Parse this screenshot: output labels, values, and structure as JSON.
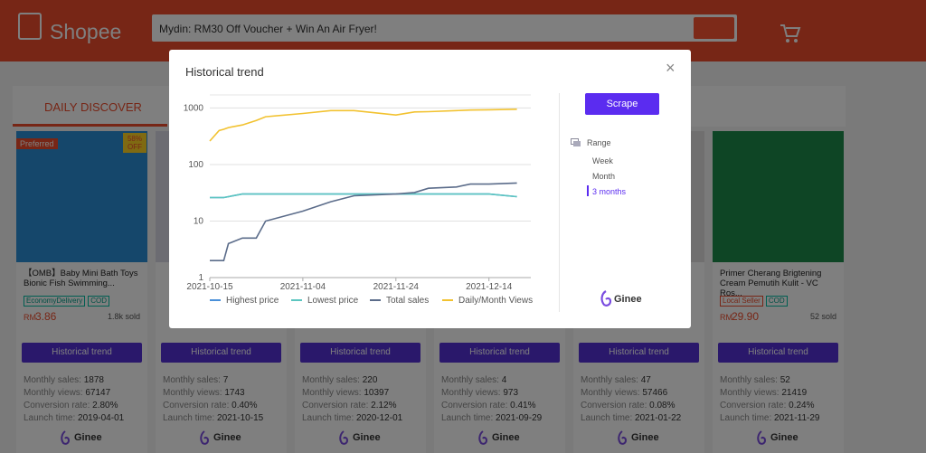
{
  "header": {
    "logo": "Shopee",
    "search": "Mydin: RM30 Off Voucher + Win An Air Fryer!"
  },
  "tab": "DAILY DISCOVER",
  "button": "Historical trend",
  "brand": "Ginee",
  "stat_labels": [
    "Monthly sales:",
    "Monthly views:",
    "Conversion rate:",
    "Launch time:"
  ],
  "products": [
    {
      "badge": "Preferred",
      "discount": "58% OFF",
      "title": "【OMB】Baby Mini Bath Toys Bionic Fish Swimming...",
      "tags": [
        "EconomyDelivery",
        "COD"
      ],
      "currency": "RM",
      "price": "3.86",
      "sold": "1.8k sold",
      "stats": [
        "1878",
        "67147",
        "2.80%",
        "2019-04-01"
      ]
    },
    {
      "stats": [
        "7",
        "1743",
        "0.40%",
        "2021-10-15"
      ]
    },
    {
      "stats": [
        "220",
        "10397",
        "2.12%",
        "2020-12-01"
      ]
    },
    {
      "stats": [
        "4",
        "973",
        "0.41%",
        "2021-09-29"
      ]
    },
    {
      "stats": [
        "47",
        "57466",
        "0.08%",
        "2021-01-22"
      ]
    },
    {
      "title": "Primer Cherang Brigtening Cream Pemutih Kulit - VC Ros...",
      "tags": [
        "Local Seller",
        "COD"
      ],
      "currency": "RM",
      "price": "29.90",
      "sold": "52 sold",
      "stats": [
        "52",
        "21419",
        "0.24%",
        "2021-11-29"
      ]
    }
  ],
  "modal": {
    "title": "Historical trend",
    "close": "×",
    "scrape": "Scrape",
    "range_label": "Range",
    "range_options": [
      "Week",
      "Month",
      "3 months"
    ],
    "selected_range": "3 months",
    "brand": "Ginee"
  },
  "chart_data": {
    "type": "line",
    "x": [
      "2021-10-15",
      "2021-10-17",
      "2021-10-18",
      "2021-10-19",
      "2021-10-22",
      "2021-10-25",
      "2021-10-27",
      "2021-11-04",
      "2021-11-10",
      "2021-11-15",
      "2021-11-24",
      "2021-11-28",
      "2021-12-01",
      "2021-12-07",
      "2021-12-10",
      "2021-12-14",
      "2021-12-20"
    ],
    "xlim": [
      "2021-10-15",
      "2021-12-23"
    ],
    "xticks": [
      "2021-10-15",
      "2021-11-04",
      "2021-11-24",
      "2021-12-14"
    ],
    "ylim": [
      1,
      1700
    ],
    "yticks": [
      1,
      10,
      100,
      1000
    ],
    "log_y": true,
    "grid": true,
    "legend": "bottom",
    "series": [
      {
        "name": "Highest price",
        "color": "#4a90d9",
        "values": [
          26,
          26,
          26,
          27,
          30,
          30,
          30,
          30,
          30,
          30,
          30,
          30,
          30,
          30,
          30,
          30,
          27
        ]
      },
      {
        "name": "Lowest price",
        "color": "#5cc6c0",
        "values": [
          26,
          26,
          26,
          27,
          30,
          30,
          30,
          30,
          30,
          30,
          30,
          30,
          30,
          30,
          30,
          30,
          27
        ]
      },
      {
        "name": "Total sales",
        "color": "#5b6c8a",
        "values": [
          2,
          2,
          2,
          4,
          5,
          5,
          10,
          15,
          22,
          28,
          30,
          32,
          38,
          40,
          45,
          45,
          47
        ]
      },
      {
        "name": "Daily/Month Views",
        "color": "#f2c230",
        "values": [
          260,
          400,
          420,
          450,
          500,
          600,
          700,
          800,
          900,
          900,
          750,
          850,
          860,
          900,
          920,
          930,
          950
        ]
      }
    ]
  }
}
